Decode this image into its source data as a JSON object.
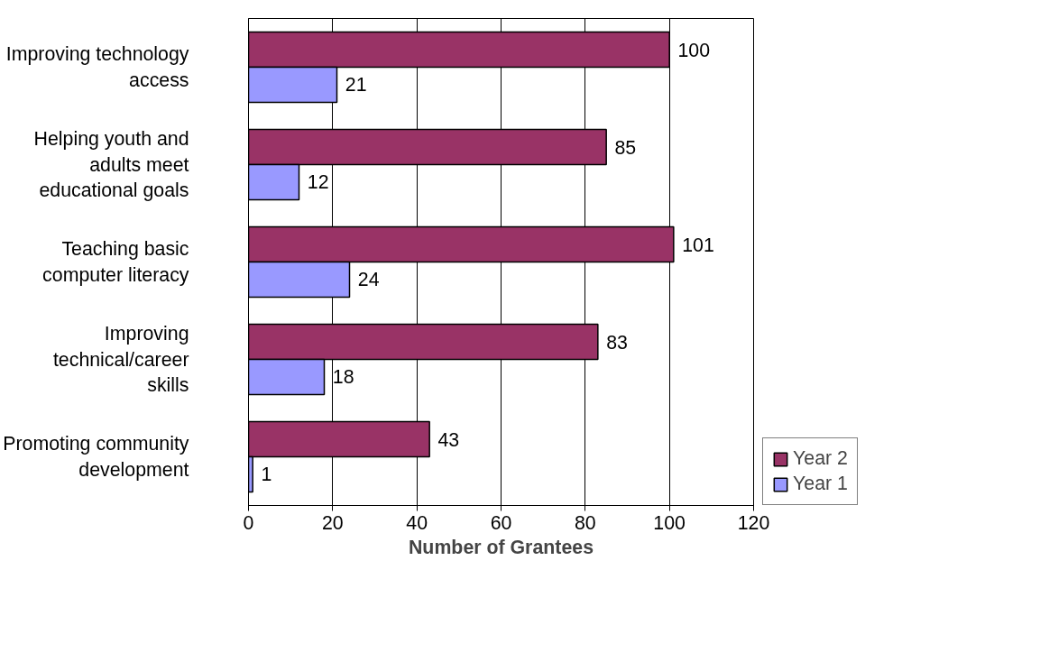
{
  "chart_data": {
    "type": "bar",
    "orientation": "horizontal",
    "xlabel": "Number of Grantees",
    "categories": [
      "Improving technology access",
      "Helping youth and adults meet educational goals",
      "Teaching basic computer literacy",
      "Improving technical/career skills",
      "Promoting community development"
    ],
    "series": [
      {
        "name": "Year 2",
        "color": "#993366",
        "values": [
          100,
          85,
          101,
          83,
          43
        ]
      },
      {
        "name": "Year 1",
        "color": "#9999ff",
        "values": [
          21,
          12,
          24,
          18,
          1
        ]
      }
    ],
    "xlim": [
      0,
      120
    ],
    "xticks": [
      0,
      20,
      40,
      60,
      80,
      100,
      120
    ],
    "grid": "x",
    "legend": "right",
    "data_labels": true
  }
}
